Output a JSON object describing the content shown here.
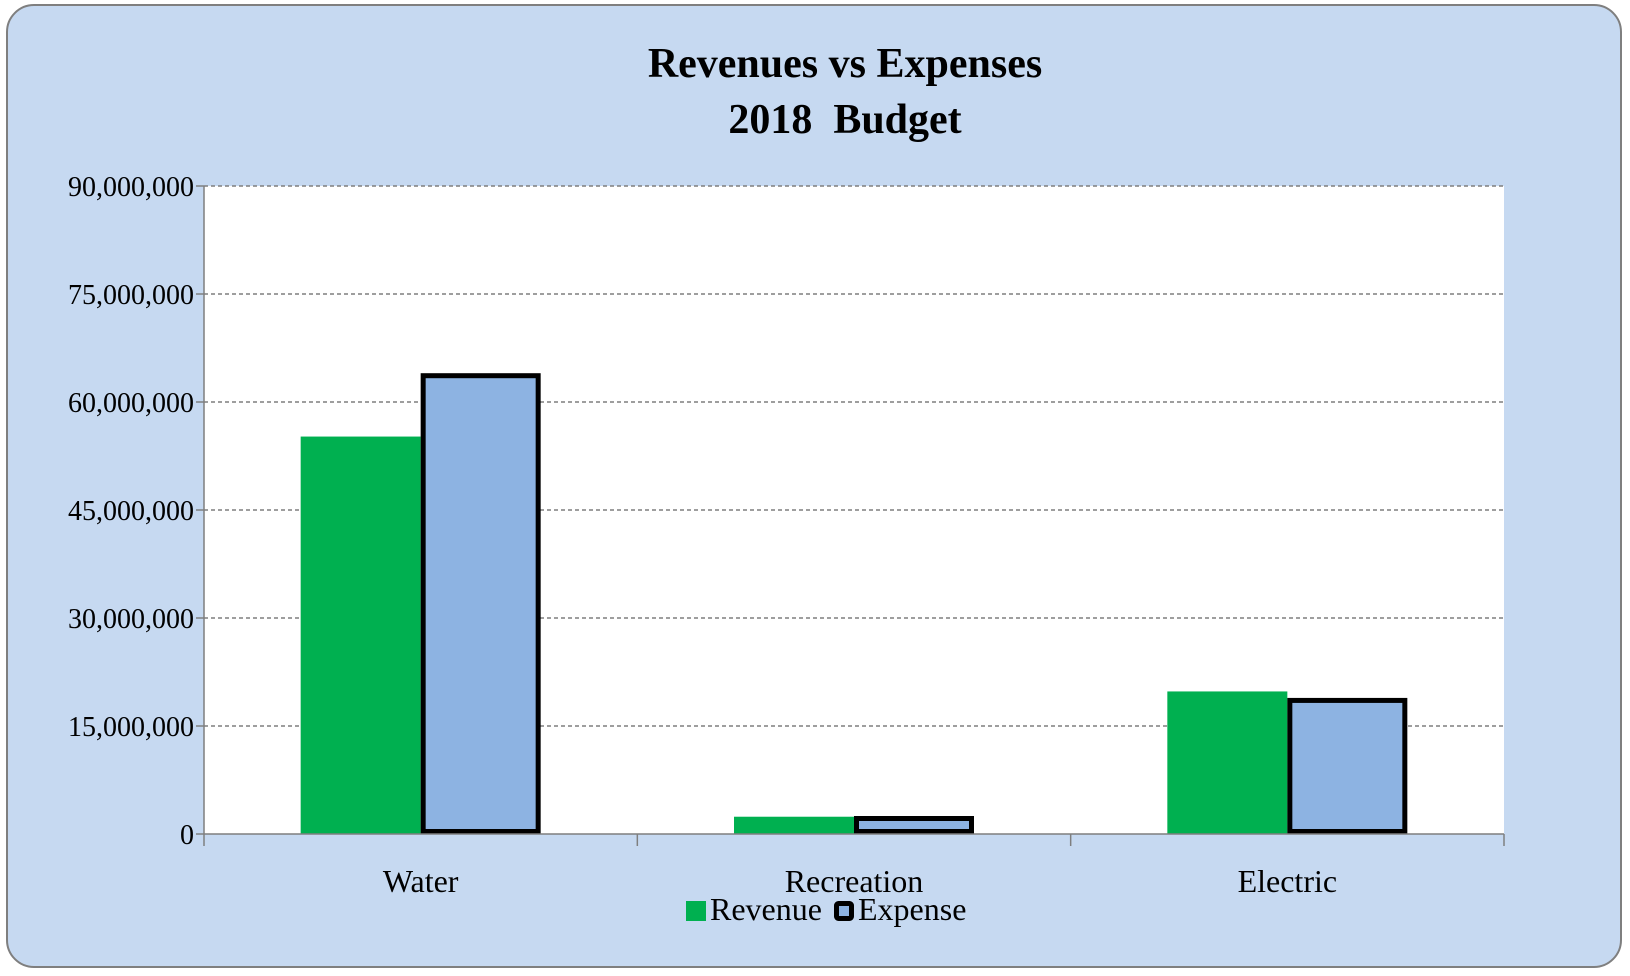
{
  "chart_data": {
    "type": "bar",
    "title": "Revenues vs Expenses",
    "subtitle": "2018  Budget",
    "categories": [
      "Water",
      "Recreation",
      "Electric"
    ],
    "series": [
      {
        "name": "Revenue",
        "values": [
          55200000,
          2400000,
          19800000
        ],
        "color": "#00b050",
        "outline": "none"
      },
      {
        "name": "Expense",
        "values": [
          64000000,
          2500000,
          18900000
        ],
        "color": "#8db3e2",
        "outline": "#000000"
      }
    ],
    "ylim": [
      0,
      90000000
    ],
    "yticks": [
      0,
      15000000,
      30000000,
      45000000,
      60000000,
      75000000,
      90000000
    ],
    "ytick_labels": [
      "0",
      "15,000,000",
      "30,000,000",
      "45,000,000",
      "60,000,000",
      "75,000,000",
      "90,000,000"
    ],
    "grid": true,
    "grid_style": "dashed",
    "legend_position": "bottom",
    "xlabel": "",
    "ylabel": ""
  },
  "colors": {
    "background": "#c6d9f1",
    "plot_area": "#ffffff",
    "gridline": "#7f7f7f",
    "revenue": "#00b050",
    "expense": "#8db3e2"
  }
}
